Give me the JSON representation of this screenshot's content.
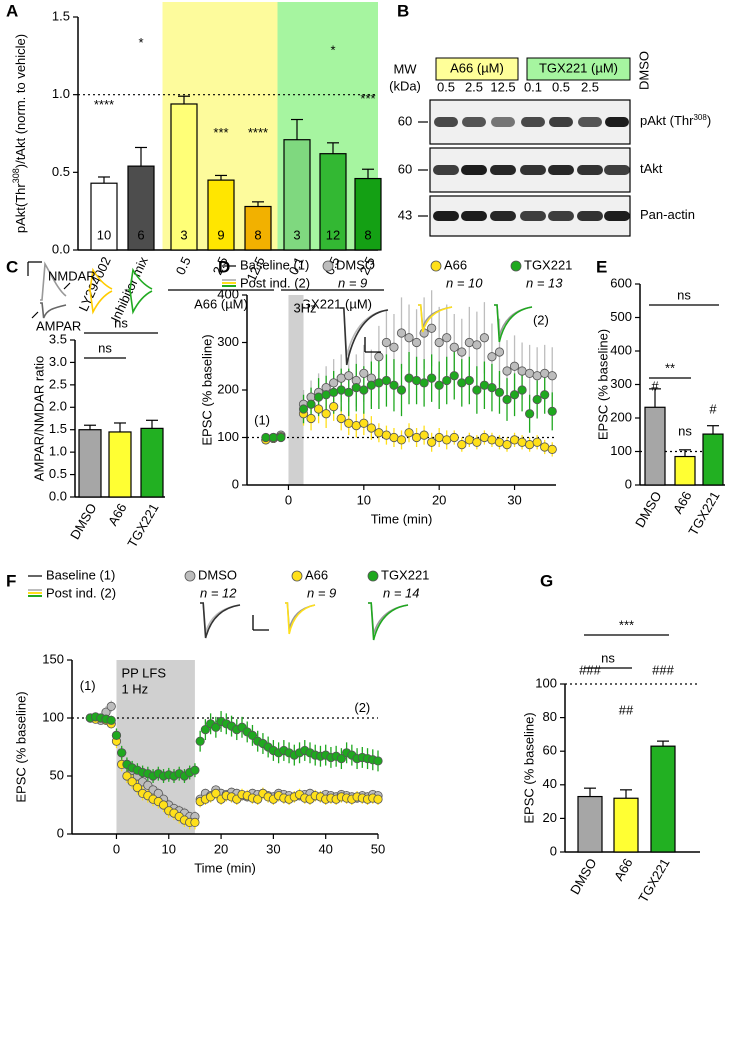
{
  "chart_data": [
    {
      "panel": "A",
      "type": "bar",
      "y_label": {
        "before": "pAkt(Thr",
        "sup": "308",
        "after": ")/tAkt (norm. to vehicle)"
      },
      "categories": [
        "LY294002",
        "Inhibitor mix",
        "0.5",
        "2.5",
        "12.5",
        "0.1",
        "0.5",
        "2.5"
      ],
      "values": [
        0.43,
        0.54,
        0.94,
        0.45,
        0.28,
        0.71,
        0.62,
        0.46
      ],
      "errors": [
        0.04,
        0.12,
        0.05,
        0.03,
        0.03,
        0.13,
        0.07,
        0.06
      ],
      "colors": [
        "#ffffff",
        "#4d4d4d",
        "#ffff77",
        "#ffe600",
        "#f2b100",
        "#7fd87f",
        "#33b833",
        "#14a014"
      ],
      "n_labels": [
        10,
        6,
        3,
        9,
        8,
        3,
        12,
        8
      ],
      "significance": [
        "****",
        "*",
        null,
        "***",
        "****",
        null,
        "*",
        "***"
      ],
      "groups": [
        {
          "label": "A66 (µM)",
          "span": [
            2,
            4
          ],
          "color": "#fdfb9c"
        },
        {
          "label": "TGX221 (µM)",
          "span": [
            5,
            7
          ],
          "color": "#a6f5a0"
        }
      ],
      "ylim": [
        0,
        1.5
      ],
      "yticks": [
        {
          "value": 0,
          "label": "0.0"
        },
        0.5,
        {
          "value": 1,
          "label": "1.0"
        },
        1.5
      ],
      "reference_line": 1
    },
    {
      "panel": "C",
      "type": "bar",
      "y_label": "AMPAR/NMDAR ratio",
      "categories": [
        "DMSO",
        "A66",
        "TGX221"
      ],
      "values": [
        1.5,
        1.45,
        1.53
      ],
      "errors": [
        0.1,
        0.2,
        0.18
      ],
      "colors": [
        "#a6a6a6",
        "#ffff33",
        "#22b022"
      ],
      "trace_labels": [
        "NMDAR",
        "AMPAR"
      ],
      "comparisons": [
        {
          "between": [
            0,
            1
          ],
          "label": "ns"
        },
        {
          "between": [
            0,
            2
          ],
          "label": "ns"
        }
      ],
      "ylim": [
        0,
        3.5
      ],
      "yticks": [
        {
          "value": 0,
          "label": "0.0"
        },
        0.5,
        {
          "value": 1,
          "label": "1.0"
        },
        1.5,
        {
          "value": 2,
          "label": "2.0"
        },
        2.5,
        {
          "value": 3,
          "label": "3.0"
        },
        3.5
      ]
    },
    {
      "panel": "D",
      "type": "scatter",
      "x_label": "Time (min)",
      "y_label": "EPSC (% baseline)",
      "legend": {
        "baseline": "Baseline (1)",
        "post": "Post ind. (2)"
      },
      "x": [
        -3,
        -2,
        -1,
        2,
        3,
        4,
        5,
        6,
        7,
        8,
        9,
        10,
        11,
        12,
        13,
        14,
        15,
        16,
        17,
        18,
        19,
        20,
        21,
        22,
        23,
        24,
        25,
        26,
        27,
        28,
        29,
        30,
        31,
        32,
        33,
        34,
        35
      ],
      "series": [
        {
          "name": "DMSO",
          "n_label": "n = 9",
          "color": "#bdbdbd",
          "values": [
            95,
            100,
            105,
            170,
            185,
            195,
            205,
            215,
            225,
            230,
            220,
            235,
            225,
            270,
            300,
            290,
            320,
            310,
            300,
            320,
            330,
            300,
            310,
            290,
            280,
            300,
            295,
            310,
            270,
            280,
            240,
            250,
            240,
            235,
            230,
            235,
            230
          ],
          "errors": [
            5,
            5,
            5,
            30,
            35,
            40,
            45,
            50,
            50,
            55,
            55,
            60,
            60,
            65,
            70,
            70,
            75,
            70,
            70,
            75,
            80,
            75,
            70,
            70,
            70,
            75,
            70,
            75,
            70,
            70,
            65,
            65,
            60,
            60,
            60,
            60,
            60
          ]
        },
        {
          "name": "A66",
          "n_label": "n = 10",
          "color": "#ffe01a",
          "values": [
            95,
            98,
            102,
            150,
            140,
            160,
            150,
            165,
            140,
            130,
            125,
            130,
            120,
            110,
            105,
            100,
            95,
            110,
            100,
            105,
            90,
            100,
            95,
            100,
            85,
            95,
            90,
            100,
            95,
            90,
            85,
            95,
            90,
            85,
            90,
            80,
            75
          ],
          "errors": [
            5,
            5,
            5,
            25,
            25,
            30,
            30,
            30,
            25,
            25,
            25,
            25,
            25,
            20,
            20,
            20,
            20,
            20,
            20,
            20,
            20,
            20,
            20,
            15,
            15,
            15,
            15,
            15,
            15,
            15,
            15,
            15,
            15,
            15,
            15,
            15,
            15
          ]
        },
        {
          "name": "TGX221",
          "n_label": "n = 13",
          "color": "#1fa81f",
          "values": [
            100,
            100,
            100,
            160,
            170,
            185,
            190,
            195,
            200,
            195,
            205,
            200,
            210,
            215,
            220,
            210,
            200,
            225,
            220,
            215,
            225,
            210,
            220,
            230,
            215,
            220,
            200,
            210,
            205,
            195,
            180,
            190,
            200,
            150,
            180,
            190,
            155
          ],
          "errors": [
            5,
            5,
            5,
            30,
            35,
            40,
            40,
            45,
            45,
            50,
            50,
            50,
            50,
            55,
            55,
            55,
            55,
            55,
            50,
            50,
            50,
            50,
            50,
            50,
            50,
            50,
            50,
            50,
            50,
            45,
            45,
            45,
            45,
            40,
            40,
            40,
            40
          ]
        }
      ],
      "shade": {
        "range": [
          0,
          2
        ],
        "label": [
          "3Hz"
        ]
      },
      "annotations": [
        "(1)",
        "(2)"
      ],
      "reference_line": 100,
      "xlim": [
        -5.5,
        35.5
      ],
      "xticks": [
        0,
        10,
        20,
        30
      ],
      "ylim": [
        0,
        400
      ],
      "yticks": [
        0,
        100,
        200,
        300,
        400
      ]
    },
    {
      "panel": "E",
      "type": "bar",
      "y_label": "EPSC (% baseline)",
      "categories": [
        "DMSO",
        "A66",
        "TGX221"
      ],
      "values": [
        232,
        85,
        152
      ],
      "errors": [
        55,
        20,
        25
      ],
      "colors": [
        "#a6a6a6",
        "#ffff33",
        "#22b022"
      ],
      "markers": [
        "#",
        "ns",
        "#"
      ],
      "comparisons": [
        {
          "between": [
            0,
            1
          ],
          "label": "**"
        },
        {
          "between": [
            0,
            2
          ],
          "label": "ns"
        }
      ],
      "reference_line": 100,
      "ylim": [
        0,
        600
      ],
      "yticks": [
        0,
        100,
        200,
        300,
        400,
        500,
        600
      ]
    },
    {
      "panel": "F",
      "type": "scatter",
      "x_label": "Time (min)",
      "y_label": "EPSC (% baseline)",
      "legend": {
        "baseline": "Baseline (1)",
        "post": "Post ind. (2)"
      },
      "x": [
        -5,
        -4,
        -3,
        -2,
        -1,
        0,
        1,
        2,
        3,
        4,
        5,
        6,
        7,
        8,
        9,
        10,
        11,
        12,
        13,
        14,
        15,
        16,
        17,
        18,
        19,
        20,
        21,
        22,
        23,
        24,
        25,
        26,
        27,
        28,
        29,
        30,
        31,
        32,
        33,
        34,
        35,
        36,
        37,
        38,
        39,
        40,
        41,
        42,
        43,
        44,
        45,
        46,
        47,
        48,
        49,
        50
      ],
      "series": [
        {
          "name": "DMSO",
          "n_label": "n = 12",
          "color": "#bdbdbd",
          "values": [
            100,
            100,
            98,
            105,
            110,
            85,
            70,
            60,
            55,
            50,
            45,
            42,
            38,
            35,
            30,
            25,
            22,
            20,
            18,
            15,
            15,
            30,
            35,
            33,
            38,
            35,
            34,
            36,
            35,
            33,
            32,
            35,
            34,
            35,
            33,
            32,
            35,
            34,
            33,
            32,
            33,
            34,
            35,
            33,
            32,
            34,
            33,
            32,
            34,
            33,
            32,
            31,
            33,
            32,
            34,
            33
          ],
          "errors": [
            3,
            3,
            3,
            5,
            5,
            5,
            5,
            5,
            5,
            5,
            5,
            5,
            5,
            5,
            5,
            5,
            5,
            5,
            5,
            5,
            5,
            4,
            4,
            4,
            4,
            4,
            4,
            4,
            4,
            4,
            4,
            4,
            4,
            4,
            4,
            4,
            4,
            4,
            4,
            4,
            4,
            4,
            4,
            4,
            4,
            4,
            4,
            4,
            4,
            4,
            4,
            4,
            4,
            4,
            4,
            4
          ]
        },
        {
          "name": "A66",
          "n_label": "n = 9",
          "color": "#ffe01a",
          "values": [
            100,
            99,
            100,
            98,
            95,
            80,
            60,
            50,
            45,
            40,
            35,
            33,
            30,
            28,
            25,
            20,
            18,
            15,
            12,
            10,
            10,
            28,
            30,
            32,
            35,
            30,
            33,
            32,
            30,
            34,
            33,
            31,
            30,
            35,
            32,
            30,
            33,
            31,
            30,
            32,
            34,
            31,
            30,
            33,
            32,
            30,
            31,
            30,
            32,
            31,
            30,
            32,
            31,
            30,
            31,
            30
          ],
          "errors": [
            3,
            3,
            3,
            4,
            4,
            6,
            6,
            6,
            6,
            6,
            6,
            6,
            6,
            6,
            6,
            6,
            6,
            6,
            6,
            6,
            6,
            5,
            5,
            5,
            5,
            5,
            5,
            5,
            5,
            5,
            5,
            5,
            5,
            5,
            5,
            5,
            5,
            5,
            5,
            5,
            5,
            5,
            5,
            5,
            5,
            5,
            5,
            5,
            5,
            5,
            5,
            5,
            5,
            5,
            5,
            5
          ]
        },
        {
          "name": "TGX221",
          "n_label": "n = 14",
          "color": "#1fa81f",
          "values": [
            100,
            101,
            100,
            99,
            98,
            85,
            70,
            60,
            57,
            55,
            53,
            52,
            50,
            52,
            50,
            51,
            50,
            52,
            50,
            53,
            55,
            80,
            90,
            95,
            92,
            97,
            95,
            93,
            90,
            92,
            88,
            85,
            80,
            78,
            75,
            72,
            70,
            72,
            70,
            68,
            70,
            72,
            70,
            68,
            67,
            68,
            66,
            67,
            65,
            70,
            68,
            65,
            66,
            65,
            64,
            63
          ],
          "errors": [
            3,
            3,
            3,
            4,
            4,
            6,
            6,
            6,
            6,
            6,
            6,
            6,
            6,
            6,
            6,
            6,
            6,
            6,
            6,
            6,
            6,
            9,
            9,
            9,
            9,
            9,
            9,
            9,
            9,
            9,
            9,
            9,
            9,
            9,
            9,
            9,
            9,
            9,
            9,
            9,
            9,
            9,
            9,
            9,
            9,
            9,
            9,
            9,
            9,
            9,
            9,
            9,
            9,
            9,
            9,
            9
          ]
        }
      ],
      "shade": {
        "range": [
          0,
          15
        ],
        "label": [
          "PP LFS",
          "1 Hz"
        ]
      },
      "annotations": [
        "(1)",
        "(2)"
      ],
      "reference_line": 100,
      "xlim": [
        -8.5,
        50
      ],
      "xticks": [
        0,
        10,
        20,
        30,
        40,
        50
      ],
      "ylim": [
        0,
        150
      ],
      "yticks": [
        0,
        50,
        100,
        150
      ]
    },
    {
      "panel": "G",
      "type": "bar",
      "y_label": "EPSC (% baseline)",
      "categories": [
        "DMSO",
        "A66",
        "TGX221"
      ],
      "values": [
        33,
        32,
        63
      ],
      "errors": [
        5,
        5,
        3
      ],
      "colors": [
        "#a6a6a6",
        "#ffff33",
        "#22b022"
      ],
      "markers": [
        "###",
        "##",
        "###"
      ],
      "comparisons": [
        {
          "between": [
            0,
            1
          ],
          "label": "ns"
        },
        {
          "between": [
            0,
            2
          ],
          "label": "***"
        }
      ],
      "reference_line": 100,
      "ylim": [
        0,
        100
      ],
      "yticks": [
        0,
        20,
        40,
        60,
        80,
        100
      ]
    }
  ],
  "blot": {
    "panel": "B",
    "mw_label": [
      "MW",
      "(kDa)"
    ],
    "groups": [
      {
        "label": "A66 (µM)",
        "color": "#ffff99"
      },
      {
        "label": "TGX221 (µM)",
        "color": "#a6f5a0"
      }
    ],
    "lanes": [
      "0.5",
      "2.5",
      "12.5",
      "0.1",
      "0.5",
      "2.5",
      "DMSO"
    ],
    "rows": [
      {
        "mw": 60,
        "label": "pAkt (Thr",
        "sup": "308",
        "label_end": ")"
      },
      {
        "mw": 60,
        "label": "tAkt"
      },
      {
        "mw": 43,
        "label": "Pan-actin"
      }
    ]
  }
}
